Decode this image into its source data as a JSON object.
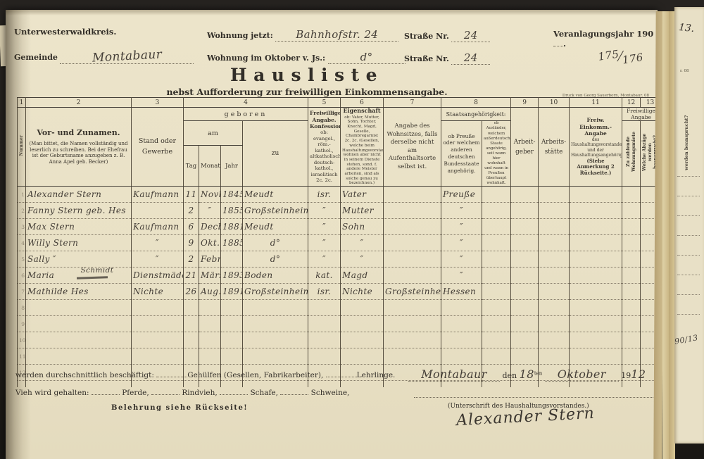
{
  "page_head": {
    "district": "Unterwesterwaldkreis.",
    "gemeinde_label": "Gemeinde",
    "gemeinde_value": "Montabaur",
    "wohnung_jetzt_label": "Wohnung jetzt:",
    "wohnung_jetzt_value": "Bahnhofstr. 24",
    "strasse_label_1": "Straße Nr.",
    "strasse_value_1": "24",
    "wohnung_oktober_label": "Wohnung im Oktober v. Js.:",
    "wohnung_oktober_value": "d°",
    "strasse_label_2": "Straße Nr.",
    "strasse_value_2": "24",
    "veranlagung_label": "Veranlagungsjahr 190",
    "veranlagung_suffix": ".",
    "folio_top": "175",
    "folio_bottom": "176",
    "title": "Hausliste",
    "subtitle": "nebst Aufforderung zur freiwilligen Einkommensangabe.",
    "printer_credit": "Druck von Georg Sauerborn, Montabaur. 08"
  },
  "table": {
    "col_numbers": [
      "1",
      "2",
      "3",
      "4",
      "5",
      "6",
      "7",
      "8",
      "9",
      "10",
      "11",
      "12",
      "13"
    ],
    "headers": {
      "col1_vertical": "Nummer",
      "col2_title": "Vor- und Zunamen.",
      "col2_note": "(Man bittet, die Namen vollständig und leserlich zu schreiben. Bei der Ehefrau ist der Geburtsname anzugeben z. B. Anna Apel geb. Becker)",
      "col3": "Stand oder Gewerbe",
      "col4_group": "geboren",
      "col4_am": "am",
      "col4_tag": "Tag",
      "col4_monat": "Monat",
      "col4_jahr": "Jahr",
      "col4_zu": "zu",
      "col5_title": "Freiwillige Angabe. Konfession:",
      "col5_note": "ob: evangel., röm.-kathol., altkatholisch, deutsch-kathol., israelitisch 2c. 2c.",
      "col6_title": "Eigenschaft",
      "col6_note": "ob: Vater, Mutter, Sohn, Tochter, Knecht, Magd, Geselle, Chambregarnist 2c. 2c. (Gesellen, welche beim Haushaltungsvorstand wohnen aber nicht in seinem Dienste stehen, sond. f. andere Meister arbeiten, sind als solche genau zu bezeichnen.)",
      "col7": "Angabe des Wohnsitzes, falls derselbe nicht am Aufenthaltsorte selbst ist.",
      "col8_group": "Staatsangehörigkeit:",
      "col8_left": "ob Preuße oder welchem anderen deutschen Bundesstaate angehörig.",
      "col8_right": "ob Ausländer, welchem außerdeutschen Staate angehörig, seit wann hier wohnhaft und wann in Preußen überhaupt wohnhaft.",
      "col9": "Arbeit-geber",
      "col10": "Arbeits-stätte",
      "col11_title": "Freiw. Einkomm.-Angabe",
      "col11_note": "des Haushaltungsvorstandes und der Haushaltungsangehörigen.",
      "col11_bold": "(Siehe Anmerkung 2 Rückseite.)",
      "col1213_group": "Freiwillige Angabe",
      "col12_vertical": "Zu zahlende Wohnungsmiete",
      "col13_vertical": "Welche Abzüge werden beansprucht?"
    },
    "rows": [
      {
        "num": "1",
        "name": "Alexander Stern",
        "stand": "Kaufmann",
        "tag": "11",
        "monat": "Novbr",
        "jahr": "1845",
        "ort": "Meudt",
        "konf": "isr.",
        "eig": "Vater",
        "wohnsitz": "",
        "staat": "Preuße",
        "staat2": "",
        "arbeitgeber": "",
        "arbeitsstaette": "",
        "einkommen": "",
        "miete": "",
        "abzuege": ""
      },
      {
        "num": "2",
        "name": "Fanny Stern geb. Hes",
        "stand": "",
        "tag": "2",
        "monat": "″",
        "jahr": "1855",
        "ort": "Großsteinheim",
        "konf": "″",
        "eig": "Mutter",
        "wohnsitz": "",
        "staat": "″",
        "staat2": "",
        "arbeitgeber": "",
        "arbeitsstaette": "",
        "einkommen": "",
        "miete": "",
        "abzuege": ""
      },
      {
        "num": "3",
        "name": "Max Stern",
        "stand": "Kaufmann",
        "tag": "6",
        "monat": "Decbr.",
        "jahr": "1881",
        "ort": "Meudt",
        "konf": "″",
        "eig": "Sohn",
        "wohnsitz": "",
        "staat": "″",
        "staat2": "",
        "arbeitgeber": "",
        "arbeitsstaette": "",
        "einkommen": "",
        "miete": "",
        "abzuege": ""
      },
      {
        "num": "4",
        "name": "Willy Stern",
        "stand": "″",
        "tag": "9",
        "monat": "Okt.",
        "jahr": "1885",
        "ort": "d°",
        "konf": "″",
        "eig": "″",
        "wohnsitz": "",
        "staat": "″",
        "staat2": "",
        "arbeitgeber": "",
        "arbeitsstaette": "",
        "einkommen": "",
        "miete": "",
        "abzuege": ""
      },
      {
        "num": "5",
        "name": "Sally   ″",
        "stand": "″",
        "tag": "2",
        "monat": "Febr.",
        "jahr": "",
        "ort": "d°",
        "konf": "″",
        "eig": "″",
        "wohnsitz": "",
        "staat": "″",
        "staat2": "",
        "arbeitgeber": "",
        "arbeitsstaette": "",
        "einkommen": "",
        "miete": "",
        "abzuege": ""
      },
      {
        "num": "6",
        "name": "Maria",
        "name_correction": "Schmidt",
        "stand": "Dienstmädch.",
        "tag": "21",
        "monat": "März",
        "jahr": "1893",
        "ort": "Boden",
        "konf": "kat.",
        "eig": "Magd",
        "wohnsitz": "",
        "staat": "″",
        "staat2": "",
        "arbeitgeber": "",
        "arbeitsstaette": "",
        "einkommen": "",
        "miete": "",
        "abzuege": ""
      },
      {
        "num": "7",
        "name": "Mathilde Hes",
        "stand": "Nichte",
        "tag": "26",
        "monat": "Aug.",
        "jahr": "1891",
        "ort": "Großsteinheim",
        "konf": "isr.",
        "eig": "Nichte",
        "wohnsitz": "Großsteinheim",
        "staat": "Hessen",
        "staat2": "",
        "arbeitgeber": "",
        "arbeitsstaette": "",
        "einkommen": "",
        "miete": "",
        "abzuege": ""
      },
      {
        "num": "8",
        "name": "",
        "stand": "",
        "tag": "",
        "monat": "",
        "jahr": "",
        "ort": "",
        "konf": "",
        "eig": "",
        "wohnsitz": "",
        "staat": "",
        "staat2": "",
        "arbeitgeber": "",
        "arbeitsstaette": "",
        "einkommen": "",
        "miete": "",
        "abzuege": ""
      },
      {
        "num": "9",
        "name": "",
        "stand": "",
        "tag": "",
        "monat": "",
        "jahr": "",
        "ort": "",
        "konf": "",
        "eig": "",
        "wohnsitz": "",
        "staat": "",
        "staat2": "",
        "arbeitgeber": "",
        "arbeitsstaette": "",
        "einkommen": "",
        "miete": "",
        "abzuege": ""
      },
      {
        "num": "10",
        "name": "",
        "stand": "",
        "tag": "",
        "monat": "",
        "jahr": "",
        "ort": "",
        "konf": "",
        "eig": "",
        "wohnsitz": "",
        "staat": "",
        "staat2": "",
        "arbeitgeber": "",
        "arbeitsstaette": "",
        "einkommen": "",
        "miete": "",
        "abzuege": ""
      },
      {
        "num": "11",
        "name": "",
        "stand": "",
        "tag": "",
        "monat": "",
        "jahr": "",
        "ort": "",
        "konf": "",
        "eig": "",
        "wohnsitz": "",
        "staat": "",
        "staat2": "",
        "arbeitgeber": "",
        "arbeitsstaette": "",
        "einkommen": "",
        "miete": "",
        "abzuege": ""
      },
      {
        "num": "12",
        "name": "",
        "stand": "",
        "tag": "",
        "monat": "",
        "jahr": "",
        "ort": "",
        "konf": "",
        "eig": "",
        "wohnsitz": "",
        "staat": "",
        "staat2": "",
        "arbeitgeber": "",
        "arbeitsstaette": "",
        "einkommen": "",
        "miete": "",
        "abzuege": ""
      }
    ]
  },
  "footer": {
    "employed_prefix": "werden durchschnittlich beschäftigt:",
    "employed_mid": "Gehülfen (Gesellen, Fabrikarbeiter),",
    "employed_suffix": "Lehrlinge.",
    "vieh_prefix": "Vieh wird gehalten:",
    "vieh_items": [
      "Pferde,",
      "Rindvieh,",
      "Schafe,",
      "Schweine,"
    ],
    "belehrung": "Belehrung siehe Rückseite!",
    "ort": "Montabaur",
    "den_label": "den",
    "day": "18",
    "day_suffix": "ten",
    "month": "Oktober",
    "year_prefix": "19",
    "year": "12",
    "unterschrift_label": "(Unterschrift des Haushaltungsvorstandes.)",
    "signature": "Alexander Stern"
  },
  "book_edge": {
    "next_page_number": "13.",
    "edge_print_fragment": "r. 08",
    "edge_vertical_text": "werden beansprucht?",
    "edge_handwritten": "90/13"
  },
  "colors": {
    "paper": "#ebe3c9",
    "ink_print": "#322e28",
    "ink_hand": "#443e37",
    "background": "#221f1c"
  }
}
